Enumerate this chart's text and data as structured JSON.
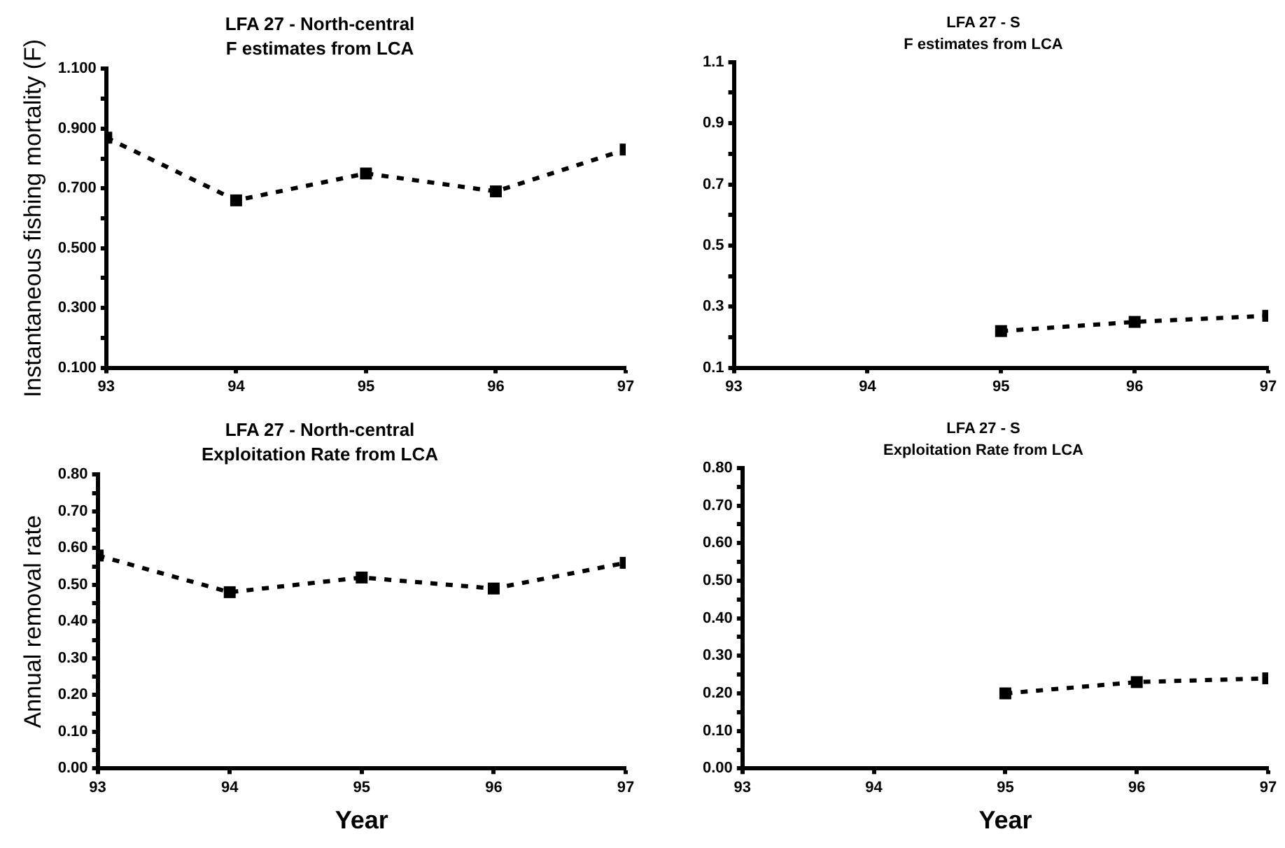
{
  "chart_data": [
    {
      "type": "line",
      "title": "LFA 27 - North-central",
      "subtitle": "F estimates from LCA",
      "ylabel": "Instantaneous fishing mortality (F)",
      "x": [
        93,
        94,
        95,
        96,
        97
      ],
      "xlim": [
        93,
        97
      ],
      "xticks": [
        93,
        94,
        95,
        96,
        97
      ],
      "ylim": [
        0.1,
        1.1
      ],
      "yticks": [
        {
          "value": 0.1,
          "label": "0.100"
        },
        {
          "value": 0.2,
          "label": null
        },
        {
          "value": 0.3,
          "label": "0.300"
        },
        {
          "value": 0.4,
          "label": null
        },
        {
          "value": 0.5,
          "label": "0.500"
        },
        {
          "value": 0.6,
          "label": null
        },
        {
          "value": 0.7,
          "label": "0.700"
        },
        {
          "value": 0.8,
          "label": null
        },
        {
          "value": 0.9,
          "label": "0.900"
        },
        {
          "value": 1.0,
          "label": null
        },
        {
          "value": 1.1,
          "label": "1.100"
        }
      ],
      "grid": false,
      "legend": false,
      "marker": "square",
      "line_style": "dashed",
      "series": [
        {
          "color": "#000000",
          "values": [
            0.87,
            0.66,
            0.75,
            0.69,
            0.83
          ]
        }
      ]
    },
    {
      "type": "line",
      "title": "LFA 27 - S",
      "subtitle": "F estimates from LCA",
      "x": [
        95,
        96,
        97
      ],
      "xlim": [
        93,
        97
      ],
      "xticks": [
        93,
        94,
        95,
        96,
        97
      ],
      "ylim": [
        0.1,
        1.1
      ],
      "yticks": [
        1.1,
        {
          "value": 1.0,
          "label": null
        },
        0.9,
        {
          "value": 0.8,
          "label": null
        },
        0.7,
        {
          "value": 0.6,
          "label": null
        },
        0.5,
        {
          "value": 0.4,
          "label": null
        },
        0.3,
        {
          "value": 0.2,
          "label": null
        },
        0.1
      ],
      "grid": false,
      "legend": false,
      "marker": "square",
      "line_style": "dashed",
      "series": [
        {
          "color": "#000000",
          "values": [
            0.22,
            0.25,
            0.27
          ]
        }
      ]
    },
    {
      "type": "line",
      "title": "LFA 27 - North-central",
      "subtitle": "Exploitation Rate from LCA",
      "ylabel": "Annual removal rate",
      "xlabel": "Year",
      "x": [
        93,
        94,
        95,
        96,
        97
      ],
      "xlim": [
        93,
        97
      ],
      "xticks": [
        93,
        94,
        95,
        96,
        97
      ],
      "ylim": [
        0,
        0.8
      ],
      "yticks": [
        {
          "value": 0,
          "label": "0.00"
        },
        {
          "value": 0.05,
          "label": null
        },
        {
          "value": 0.1,
          "label": "0.10"
        },
        {
          "value": 0.15,
          "label": null
        },
        {
          "value": 0.2,
          "label": "0.20"
        },
        {
          "value": 0.25,
          "label": null
        },
        {
          "value": 0.3,
          "label": "0.30"
        },
        {
          "value": 0.35,
          "label": null
        },
        {
          "value": 0.4,
          "label": "0.40"
        },
        {
          "value": 0.45,
          "label": null
        },
        {
          "value": 0.5,
          "label": "0.50"
        },
        {
          "value": 0.55,
          "label": null
        },
        {
          "value": 0.6,
          "label": "0.60"
        },
        {
          "value": 0.65,
          "label": null
        },
        {
          "value": 0.7,
          "label": "0.70"
        },
        {
          "value": 0.75,
          "label": null
        },
        {
          "value": 0.8,
          "label": "0.80"
        }
      ],
      "grid": false,
      "legend": false,
      "marker": "square",
      "line_style": "dashed",
      "series": [
        {
          "color": "#000000",
          "values": [
            0.58,
            0.48,
            0.52,
            0.49,
            0.56
          ]
        }
      ]
    },
    {
      "type": "line",
      "title": "LFA 27 - S",
      "subtitle": "Exploitation Rate from LCA",
      "xlabel": "Year",
      "x": [
        95,
        96,
        97
      ],
      "xlim": [
        93,
        97
      ],
      "xticks": [
        93,
        94,
        95,
        96,
        97
      ],
      "ylim": [
        0,
        0.8
      ],
      "yticks": [
        {
          "value": 0,
          "label": "0.00"
        },
        {
          "value": 0.05,
          "label": null
        },
        {
          "value": 0.1,
          "label": "0.10"
        },
        {
          "value": 0.15,
          "label": null
        },
        {
          "value": 0.2,
          "label": "0.20"
        },
        {
          "value": 0.25,
          "label": null
        },
        {
          "value": 0.3,
          "label": "0.30"
        },
        {
          "value": 0.35,
          "label": null
        },
        {
          "value": 0.4,
          "label": "0.40"
        },
        {
          "value": 0.45,
          "label": null
        },
        {
          "value": 0.5,
          "label": "0.50"
        },
        {
          "value": 0.55,
          "label": null
        },
        {
          "value": 0.6,
          "label": "0.60"
        },
        {
          "value": 0.65,
          "label": null
        },
        {
          "value": 0.7,
          "label": "0.70"
        },
        {
          "value": 0.75,
          "label": null
        },
        {
          "value": 0.8,
          "label": "0.80"
        }
      ],
      "grid": false,
      "legend": false,
      "marker": "square",
      "line_style": "dashed",
      "series": [
        {
          "color": "#000000",
          "values": [
            0.2,
            0.23,
            0.24
          ]
        }
      ]
    }
  ]
}
